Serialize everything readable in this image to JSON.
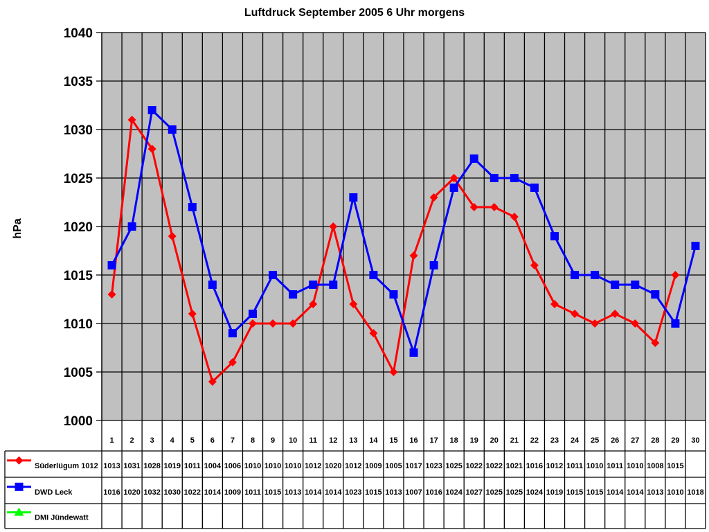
{
  "title": "Luftdruck September 2005 6 Uhr morgens",
  "ylabel": "hPa",
  "colors": {
    "plot_bg": "#c0c0c0",
    "grid": "#000000",
    "sueder": "#ff0000",
    "dwd": "#0000ff",
    "dmi": "#00ff00"
  },
  "chart_data": {
    "type": "line",
    "title": "Luftdruck September 2005 6 Uhr morgens",
    "xlabel": "",
    "ylabel": "hPa",
    "ylim": [
      1000,
      1040
    ],
    "yticks": [
      1000,
      1005,
      1010,
      1015,
      1020,
      1025,
      1030,
      1035,
      1040
    ],
    "grid": true,
    "legend_position": "data-table-left",
    "categories": [
      "1",
      "2",
      "3",
      "4",
      "5",
      "6",
      "7",
      "8",
      "9",
      "10",
      "11",
      "12",
      "13",
      "14",
      "15",
      "16",
      "17",
      "18",
      "19",
      "20",
      "21",
      "22",
      "23",
      "24",
      "25",
      "26",
      "27",
      "28",
      "29",
      "30"
    ],
    "series": [
      {
        "name": "Süderlügum 1012",
        "marker": "diamond",
        "color": "#ff0000",
        "values": [
          1013,
          1031,
          1028,
          1019,
          1011,
          1004,
          1006,
          1010,
          1010,
          1010,
          1012,
          1020,
          1012,
          1009,
          1005,
          1017,
          1023,
          1025,
          1022,
          1022,
          1021,
          1016,
          1012,
          1011,
          1010,
          1011,
          1010,
          1008,
          1015,
          null
        ]
      },
      {
        "name": "DWD Leck",
        "marker": "square",
        "color": "#0000ff",
        "values": [
          1016,
          1020,
          1032,
          1030,
          1022,
          1014,
          1009,
          1011,
          1015,
          1013,
          1014,
          1014,
          1023,
          1015,
          1013,
          1007,
          1016,
          1024,
          1027,
          1025,
          1025,
          1024,
          1019,
          1015,
          1015,
          1014,
          1014,
          1013,
          1010,
          1018
        ]
      },
      {
        "name": "DMI Jündewatt",
        "marker": "triangle",
        "color": "#00ff00",
        "values": [
          null,
          null,
          null,
          null,
          null,
          null,
          null,
          null,
          null,
          null,
          null,
          null,
          null,
          null,
          null,
          null,
          null,
          null,
          null,
          null,
          null,
          null,
          null,
          null,
          null,
          null,
          null,
          null,
          null,
          null
        ]
      }
    ]
  }
}
